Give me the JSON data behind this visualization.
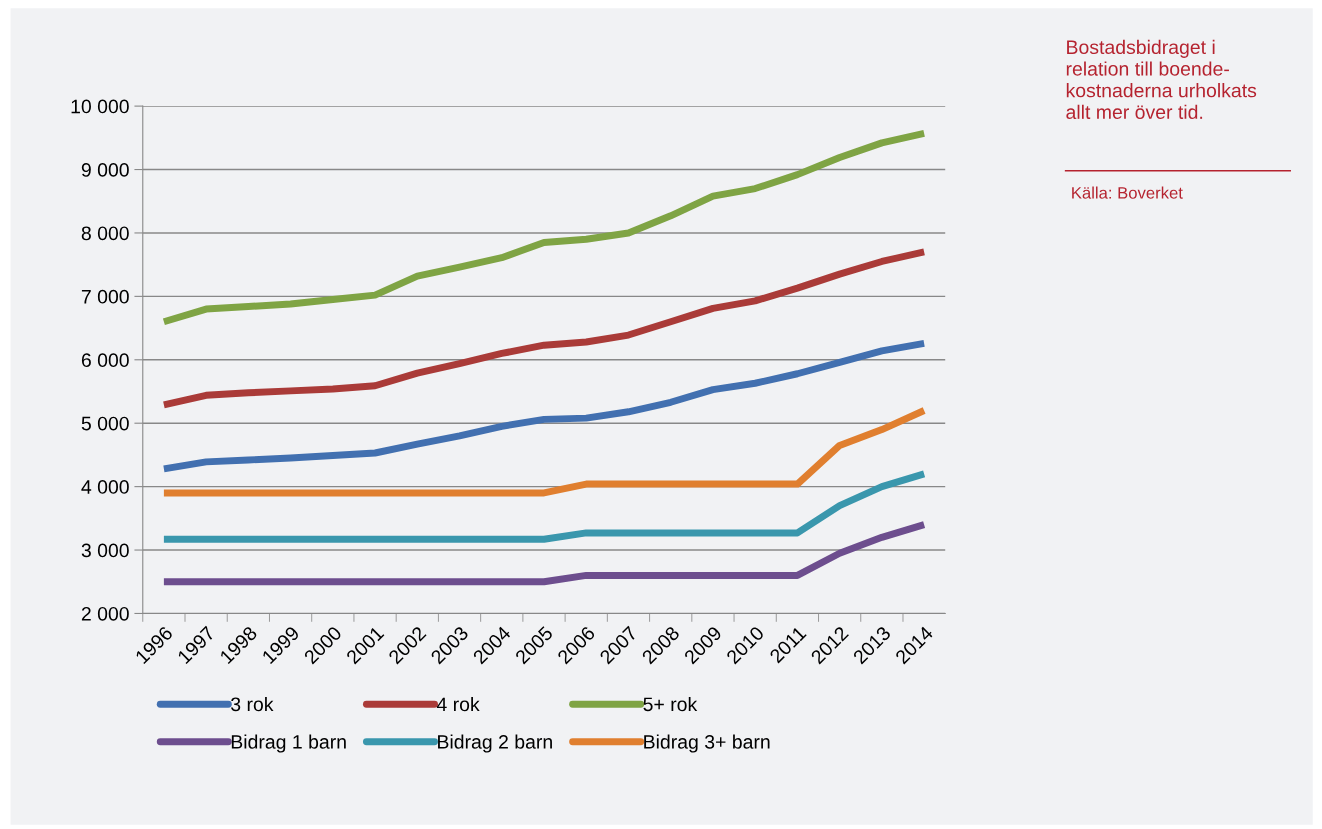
{
  "chart_data": {
    "type": "line",
    "categories": [
      "1996",
      "1997",
      "1998",
      "1999",
      "2000",
      "2001",
      "2002",
      "2003",
      "2004",
      "2005",
      "2006",
      "2007",
      "2008",
      "2009",
      "2010",
      "2011",
      "2012",
      "2013",
      "2014"
    ],
    "series": [
      {
        "name": "3 rok",
        "color": "#4270b0",
        "values": [
          4280,
          4390,
          4420,
          4450,
          4490,
          4530,
          4670,
          4800,
          4950,
          5060,
          5080,
          5180,
          5330,
          5530,
          5630,
          5780,
          5960,
          6140,
          6260
        ]
      },
      {
        "name": "4 rok",
        "color": "#aa3b38",
        "values": [
          5290,
          5440,
          5480,
          5510,
          5540,
          5590,
          5790,
          5940,
          6100,
          6230,
          6280,
          6390,
          6600,
          6810,
          6930,
          7130,
          7350,
          7550,
          7700
        ]
      },
      {
        "name": "5+ rok",
        "color": "#7fa444",
        "values": [
          6600,
          6800,
          6840,
          6880,
          6950,
          7020,
          7320,
          7460,
          7610,
          7850,
          7900,
          8000,
          8270,
          8580,
          8700,
          8920,
          9190,
          9420,
          9570
        ]
      },
      {
        "name": "Bidrag 1 barn",
        "color": "#6d4e8e",
        "values": [
          2500,
          2500,
          2500,
          2500,
          2500,
          2500,
          2500,
          2500,
          2500,
          2500,
          2600,
          2600,
          2600,
          2600,
          2600,
          2600,
          2950,
          3200,
          3400
        ]
      },
      {
        "name": "Bidrag 2 barn",
        "color": "#3a97ad",
        "values": [
          3170,
          3170,
          3170,
          3170,
          3170,
          3170,
          3170,
          3170,
          3170,
          3170,
          3270,
          3270,
          3270,
          3270,
          3270,
          3270,
          3700,
          4000,
          4200
        ]
      },
      {
        "name": "Bidrag 3+ barn",
        "color": "#e07f2f",
        "values": [
          3900,
          3900,
          3900,
          3900,
          3900,
          3900,
          3900,
          3900,
          3900,
          3900,
          4040,
          4040,
          4040,
          4040,
          4040,
          4040,
          4650,
          4900,
          5200
        ]
      }
    ],
    "ylim": [
      2000,
      10000
    ],
    "yticks": [
      {
        "value": 2000,
        "label": "2 000"
      },
      {
        "value": 3000,
        "label": "3 000"
      },
      {
        "value": 4000,
        "label": "4 000"
      },
      {
        "value": 5000,
        "label": "5 000"
      },
      {
        "value": 6000,
        "label": "6 000"
      },
      {
        "value": 7000,
        "label": "7 000"
      },
      {
        "value": 8000,
        "label": "8 000"
      },
      {
        "value": 9000,
        "label": "9 000"
      },
      {
        "value": 10000,
        "label": "10 000"
      }
    ],
    "grid": "y",
    "legend": "bottom",
    "marker": "none",
    "line_style": "solid",
    "annotations": [
      "Bostadsbidraget i\nrelation till boende-\nkostnaderna urholkats\nallt mer över tid.",
      "Källa: Boverket"
    ]
  }
}
